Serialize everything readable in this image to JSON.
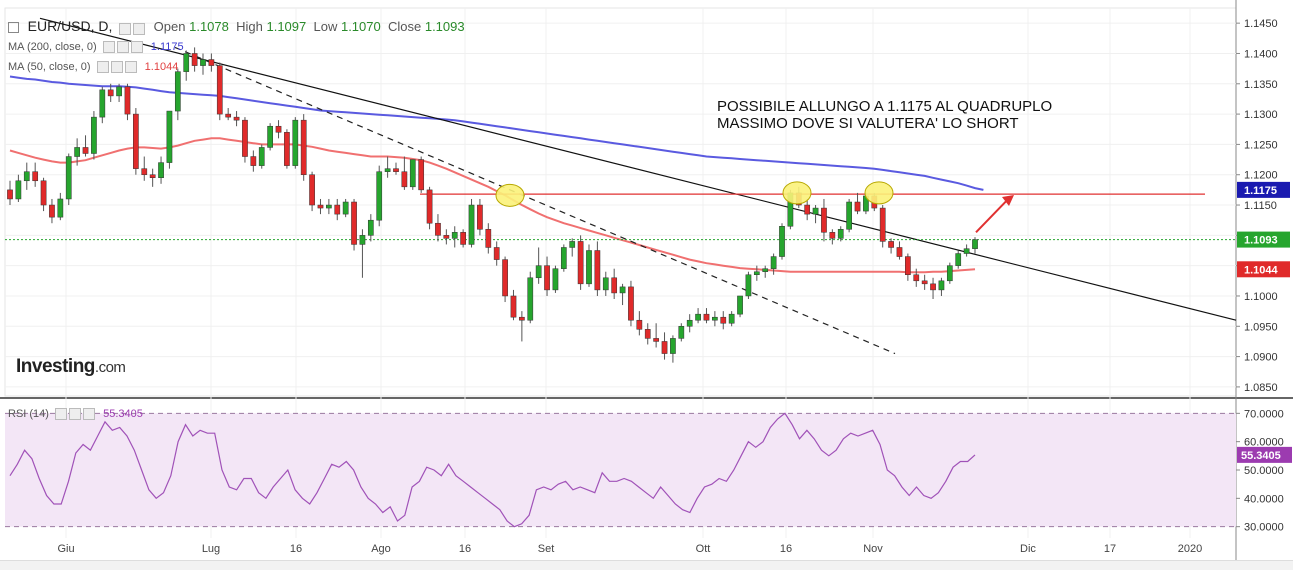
{
  "header": {
    "symbol": "EUR/USD, D,",
    "open_label": "Open",
    "open": "1.1078",
    "high_label": "High",
    "high": "1.1097",
    "low_label": "Low",
    "low": "1.1070",
    "close_label": "Close",
    "close": "1.1093"
  },
  "indicators": {
    "ma200_label": "MA (200, close, 0)",
    "ma200_value": "1.1175",
    "ma50_label": "MA (50, close, 0)",
    "ma50_value": "1.1044",
    "rsi_label": "RSI (14)",
    "rsi_value": "55.3405"
  },
  "logo": {
    "name": "Investing",
    "suffix": ".com"
  },
  "annotation": {
    "line1": "POSSIBILE ALLUNGO A 1.1175 AL QUADRUPLO",
    "line2": "MASSIMO DOVE SI VALUTERA' LO SHORT"
  },
  "colors": {
    "up": "#26a52e",
    "down": "#e02a2a",
    "ma200": "#5a5ae0",
    "ma50": "#f07070",
    "resistance": "#e03030",
    "rsi_line": "#a052b8",
    "rsi_bg": "#f3e6f6",
    "price_badge": "#26a52e",
    "ma50_badge": "#e02a2a",
    "ma200_badge": "#1a1ab0",
    "rsi_badge": "#9c3bb0"
  },
  "chart_data": [
    {
      "type": "candlestick",
      "title": "EUR/USD, D,",
      "x_ticks": [
        "Giu",
        "Lug",
        "16",
        "Ago",
        "16",
        "Set",
        "Ott",
        "16",
        "Nov",
        "Dic",
        "17",
        "2020"
      ],
      "y_ticks": [
        "1.1450",
        "1.1400",
        "1.1350",
        "1.1300",
        "1.1250",
        "1.1200",
        "1.1150",
        "1.1100",
        "1.1050",
        "1.1000",
        "1.0950",
        "1.0900",
        "1.0850"
      ],
      "ylim": [
        1.0835,
        1.1475
      ],
      "last_price_label": "1.1093",
      "ma200_label": "1.1175",
      "ma50_label": "1.1044",
      "resistance_level": 1.1168,
      "candles": [
        [
          1.1175,
          1.119,
          1.115,
          1.116
        ],
        [
          1.116,
          1.12,
          1.1155,
          1.119
        ],
        [
          1.119,
          1.122,
          1.1175,
          1.1205
        ],
        [
          1.1205,
          1.122,
          1.118,
          1.119
        ],
        [
          1.119,
          1.1195,
          1.114,
          1.115
        ],
        [
          1.115,
          1.116,
          1.112,
          1.113
        ],
        [
          1.113,
          1.117,
          1.1125,
          1.116
        ],
        [
          1.116,
          1.1235,
          1.115,
          1.123
        ],
        [
          1.123,
          1.126,
          1.1215,
          1.1245
        ],
        [
          1.1245,
          1.1265,
          1.123,
          1.1235
        ],
        [
          1.1235,
          1.1305,
          1.1225,
          1.1295
        ],
        [
          1.1295,
          1.1345,
          1.1285,
          1.134
        ],
        [
          1.134,
          1.135,
          1.132,
          1.133
        ],
        [
          1.133,
          1.135,
          1.132,
          1.1345
        ],
        [
          1.1345,
          1.135,
          1.129,
          1.13
        ],
        [
          1.13,
          1.131,
          1.12,
          1.121
        ],
        [
          1.121,
          1.123,
          1.119,
          1.12
        ],
        [
          1.12,
          1.121,
          1.118,
          1.1195
        ],
        [
          1.1195,
          1.123,
          1.1185,
          1.122
        ],
        [
          1.122,
          1.13,
          1.121,
          1.1305
        ],
        [
          1.1305,
          1.1375,
          1.129,
          1.137
        ],
        [
          1.137,
          1.1405,
          1.1355,
          1.14
        ],
        [
          1.14,
          1.141,
          1.137,
          1.138
        ],
        [
          1.138,
          1.14,
          1.1365,
          1.139
        ],
        [
          1.139,
          1.14,
          1.137,
          1.138
        ],
        [
          1.138,
          1.1385,
          1.129,
          1.13
        ],
        [
          1.13,
          1.131,
          1.129,
          1.1295
        ],
        [
          1.1295,
          1.1305,
          1.128,
          1.129
        ],
        [
          1.129,
          1.1295,
          1.122,
          1.123
        ],
        [
          1.123,
          1.124,
          1.1205,
          1.1215
        ],
        [
          1.1215,
          1.125,
          1.121,
          1.1245
        ],
        [
          1.1245,
          1.1285,
          1.124,
          1.128
        ],
        [
          1.128,
          1.129,
          1.126,
          1.127
        ],
        [
          1.127,
          1.1275,
          1.121,
          1.1215
        ],
        [
          1.1215,
          1.1295,
          1.121,
          1.129
        ],
        [
          1.129,
          1.13,
          1.119,
          1.12
        ],
        [
          1.12,
          1.1205,
          1.114,
          1.115
        ],
        [
          1.115,
          1.116,
          1.1135,
          1.1145
        ],
        [
          1.1145,
          1.116,
          1.1135,
          1.115
        ],
        [
          1.115,
          1.116,
          1.1125,
          1.1135
        ],
        [
          1.1135,
          1.116,
          1.113,
          1.1155
        ],
        [
          1.1155,
          1.116,
          1.1075,
          1.1085
        ],
        [
          1.1085,
          1.111,
          1.103,
          1.11
        ],
        [
          1.11,
          1.1135,
          1.109,
          1.1125
        ],
        [
          1.1125,
          1.1215,
          1.1115,
          1.1205
        ],
        [
          1.1205,
          1.123,
          1.1195,
          1.121
        ],
        [
          1.121,
          1.122,
          1.12,
          1.1205
        ],
        [
          1.1205,
          1.123,
          1.1175,
          1.118
        ],
        [
          1.118,
          1.1225,
          1.1175,
          1.1225
        ],
        [
          1.1225,
          1.123,
          1.117,
          1.1175
        ],
        [
          1.1175,
          1.118,
          1.111,
          1.112
        ],
        [
          1.112,
          1.1135,
          1.109,
          1.11
        ],
        [
          1.11,
          1.111,
          1.1085,
          1.1095
        ],
        [
          1.1095,
          1.1115,
          1.108,
          1.1105
        ],
        [
          1.1105,
          1.111,
          1.108,
          1.1085
        ],
        [
          1.1085,
          1.116,
          1.108,
          1.115
        ],
        [
          1.115,
          1.116,
          1.11,
          1.111
        ],
        [
          1.111,
          1.112,
          1.107,
          1.108
        ],
        [
          1.108,
          1.109,
          1.105,
          1.106
        ],
        [
          1.106,
          1.1065,
          1.099,
          1.1
        ],
        [
          1.1,
          1.101,
          1.096,
          1.0965
        ],
        [
          1.0965,
          1.0975,
          1.0925,
          1.096
        ],
        [
          1.096,
          1.104,
          1.0955,
          1.103
        ],
        [
          1.103,
          1.108,
          1.102,
          1.105
        ],
        [
          1.105,
          1.1065,
          1.1,
          1.101
        ],
        [
          1.101,
          1.105,
          1.1005,
          1.1045
        ],
        [
          1.1045,
          1.1085,
          1.104,
          1.108
        ],
        [
          1.108,
          1.1095,
          1.1065,
          1.109
        ],
        [
          1.109,
          1.11,
          1.101,
          1.102
        ],
        [
          1.102,
          1.1085,
          1.1015,
          1.1075
        ],
        [
          1.1075,
          1.109,
          1.1,
          1.101
        ],
        [
          1.101,
          1.104,
          1.1,
          1.103
        ],
        [
          1.103,
          1.1045,
          1.0995,
          1.1005
        ],
        [
          1.1005,
          1.102,
          1.0985,
          1.1015
        ],
        [
          1.1015,
          1.1025,
          1.095,
          1.096
        ],
        [
          1.096,
          1.0975,
          1.0935,
          1.0945
        ],
        [
          1.0945,
          1.0955,
          1.092,
          1.093
        ],
        [
          1.093,
          1.0955,
          1.0915,
          1.0925
        ],
        [
          1.0925,
          1.094,
          1.0895,
          1.0905
        ],
        [
          1.0905,
          1.0935,
          1.089,
          1.093
        ],
        [
          1.093,
          1.0955,
          1.0925,
          1.095
        ],
        [
          1.095,
          1.097,
          1.094,
          1.096
        ],
        [
          1.096,
          1.098,
          1.0955,
          1.097
        ],
        [
          1.097,
          1.098,
          1.0955,
          1.096
        ],
        [
          1.096,
          1.0975,
          1.095,
          1.0965
        ],
        [
          1.0965,
          1.0975,
          1.0945,
          1.0955
        ],
        [
          1.0955,
          1.0975,
          1.095,
          1.097
        ],
        [
          1.097,
          1.1,
          1.0965,
          1.1
        ],
        [
          1.1,
          1.104,
          1.0995,
          1.1035
        ],
        [
          1.1035,
          1.105,
          1.1025,
          1.104
        ],
        [
          1.104,
          1.105,
          1.103,
          1.1045
        ],
        [
          1.1045,
          1.107,
          1.1035,
          1.1065
        ],
        [
          1.1065,
          1.112,
          1.106,
          1.1115
        ],
        [
          1.1115,
          1.1175,
          1.111,
          1.117
        ],
        [
          1.117,
          1.118,
          1.1145,
          1.115
        ],
        [
          1.115,
          1.116,
          1.1125,
          1.1135
        ],
        [
          1.1135,
          1.115,
          1.112,
          1.1145
        ],
        [
          1.1145,
          1.116,
          1.109,
          1.1105
        ],
        [
          1.1105,
          1.111,
          1.1085,
          1.1095
        ],
        [
          1.1095,
          1.1115,
          1.109,
          1.111
        ],
        [
          1.111,
          1.116,
          1.1105,
          1.1155
        ],
        [
          1.1155,
          1.117,
          1.1135,
          1.114
        ],
        [
          1.114,
          1.117,
          1.1135,
          1.1165
        ],
        [
          1.1165,
          1.117,
          1.114,
          1.1145
        ],
        [
          1.1145,
          1.115,
          1.108,
          1.109
        ],
        [
          1.109,
          1.1095,
          1.107,
          1.108
        ],
        [
          1.108,
          1.109,
          1.106,
          1.1065
        ],
        [
          1.1065,
          1.107,
          1.1025,
          1.1035
        ],
        [
          1.1035,
          1.1045,
          1.1015,
          1.1025
        ],
        [
          1.1025,
          1.1035,
          1.101,
          1.102
        ],
        [
          1.102,
          1.103,
          1.0995,
          1.101
        ],
        [
          1.101,
          1.103,
          1.1,
          1.1025
        ],
        [
          1.1025,
          1.1055,
          1.102,
          1.105
        ],
        [
          1.105,
          1.1075,
          1.1045,
          1.107
        ],
        [
          1.107,
          1.1085,
          1.1065,
          1.1078
        ],
        [
          1.1078,
          1.1097,
          1.107,
          1.1093
        ]
      ],
      "ma50": [
        1.124,
        1.1236,
        1.1232,
        1.1228,
        1.1225,
        1.1222,
        1.122,
        1.122,
        1.1222,
        1.1224,
        1.1228,
        1.1232,
        1.1236,
        1.124,
        1.1243,
        1.1245,
        1.1245,
        1.1244,
        1.1243,
        1.1245,
        1.1248,
        1.1252,
        1.1256,
        1.1258,
        1.126,
        1.126,
        1.1258,
        1.1256,
        1.1254,
        1.1252,
        1.125,
        1.125,
        1.125,
        1.125,
        1.125,
        1.1248,
        1.1246,
        1.1243,
        1.124,
        1.1238,
        1.1236,
        1.1234,
        1.1232,
        1.123,
        1.123,
        1.123,
        1.1229,
        1.1228,
        1.1226,
        1.1224,
        1.122,
        1.1215,
        1.121,
        1.1204,
        1.1198,
        1.1192,
        1.1186,
        1.118,
        1.1173,
        1.1166,
        1.1158,
        1.115,
        1.1143,
        1.1136,
        1.113,
        1.1125,
        1.112,
        1.1116,
        1.1112,
        1.1108,
        1.1104,
        1.11,
        1.1096,
        1.1092,
        1.1088,
        1.1084,
        1.108,
        1.1076,
        1.1072,
        1.1068,
        1.1064,
        1.106,
        1.1057,
        1.1054,
        1.1052,
        1.105,
        1.1048,
        1.1046,
        1.1045,
        1.1044,
        1.1043,
        1.1042,
        1.1041,
        1.104,
        1.104,
        1.104,
        1.104,
        1.104,
        1.104,
        1.104,
        1.104,
        1.104,
        1.104,
        1.104,
        1.104,
        1.104,
        1.104,
        1.1039,
        1.1039,
        1.1039,
        1.104,
        1.104,
        1.1041,
        1.1042,
        1.1043,
        1.1044
      ],
      "ma200": [
        1.1362,
        1.136,
        1.1358,
        1.1357,
        1.1355,
        1.1353,
        1.1352,
        1.135,
        1.1349,
        1.1348,
        1.1347,
        1.1346,
        1.1346,
        1.1346,
        1.1345,
        1.1344,
        1.1342,
        1.134,
        1.1338,
        1.1336,
        1.1335,
        1.1334,
        1.1333,
        1.1332,
        1.1331,
        1.133,
        1.1328,
        1.1326,
        1.1324,
        1.1322,
        1.132,
        1.1318,
        1.1316,
        1.1314,
        1.1312,
        1.131,
        1.1308,
        1.1306,
        1.1305,
        1.1304,
        1.1303,
        1.1302,
        1.1301,
        1.13,
        1.1299,
        1.1298,
        1.1297,
        1.1296,
        1.1295,
        1.1294,
        1.1293,
        1.1292,
        1.1291,
        1.129,
        1.1288,
        1.1286,
        1.1284,
        1.1282,
        1.128,
        1.1278,
        1.1276,
        1.1274,
        1.1272,
        1.127,
        1.1268,
        1.1266,
        1.1264,
        1.1262,
        1.126,
        1.1258,
        1.1256,
        1.1254,
        1.1252,
        1.125,
        1.1248,
        1.1246,
        1.1244,
        1.1242,
        1.124,
        1.1238,
        1.1236,
        1.1234,
        1.1232,
        1.123,
        1.1229,
        1.1228,
        1.1227,
        1.1226,
        1.1225,
        1.1224,
        1.1223,
        1.1222,
        1.1221,
        1.122,
        1.1219,
        1.1218,
        1.1217,
        1.1216,
        1.1215,
        1.1214,
        1.1213,
        1.1212,
        1.1211,
        1.121,
        1.1208,
        1.1206,
        1.1204,
        1.1202,
        1.12,
        1.1198,
        1.1195,
        1.1192,
        1.1189,
        1.1186,
        1.1182,
        1.1178,
        1.1175
      ]
    },
    {
      "type": "line",
      "title": "RSI (14)",
      "y_ticks": [
        "70.0000",
        "60.0000",
        "50.0000",
        "40.0000",
        "30.0000"
      ],
      "ylim": [
        26,
        74
      ],
      "bands": [
        30,
        70
      ],
      "value_label": "55.3405",
      "values": [
        48,
        52,
        57,
        54,
        47,
        41,
        38,
        38,
        46,
        56,
        59,
        57,
        62,
        67,
        64,
        65,
        62,
        57,
        50,
        43,
        40,
        42,
        48,
        60,
        66,
        62,
        64,
        63,
        63,
        50,
        44,
        43,
        47,
        47,
        42,
        40,
        44,
        47,
        50,
        43,
        40,
        38,
        42,
        47,
        52,
        51,
        53,
        50,
        44,
        40,
        38,
        35,
        37,
        32,
        34,
        44,
        46,
        51,
        50,
        48,
        52,
        48,
        46,
        44,
        42,
        40,
        38,
        36,
        32,
        30,
        31,
        34,
        43,
        44,
        43,
        45,
        46,
        43,
        44,
        43,
        42,
        49,
        46,
        46,
        47,
        46,
        44,
        42,
        40,
        44,
        41,
        38,
        36,
        35,
        40,
        44,
        45,
        47,
        46,
        50,
        55,
        60,
        58,
        60,
        65,
        68,
        70,
        66,
        61,
        64,
        61,
        57,
        55,
        57,
        61,
        63,
        62,
        63,
        64,
        59,
        50,
        48,
        44,
        41,
        44,
        41,
        40,
        42,
        46,
        51,
        53,
        53,
        55.3405
      ]
    },
    {
      "type": "line",
      "title": "trendlines",
      "note": "solid downtrend line from early June high through November; dashed line from July high to October"
    }
  ]
}
